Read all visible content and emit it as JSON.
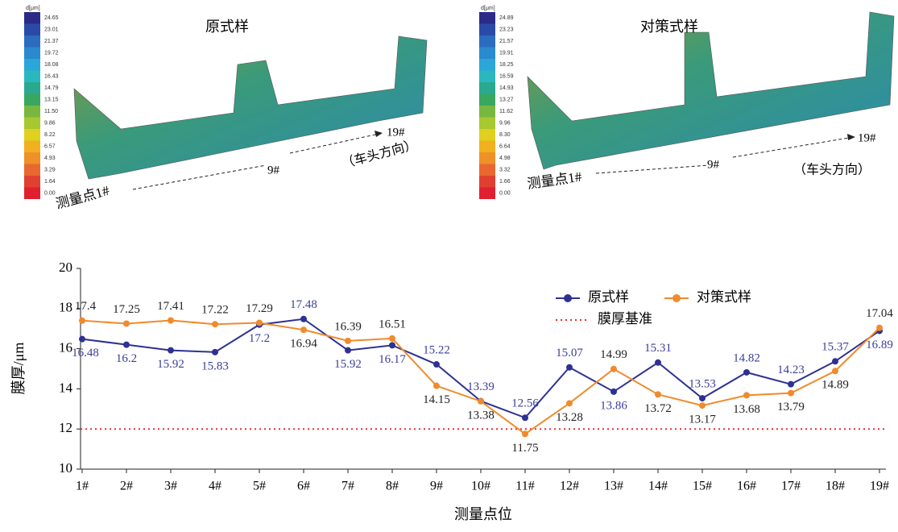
{
  "panels": [
    {
      "title": "原式样",
      "scale_label": "d[μm]",
      "scale": [
        "24.65",
        "23.01",
        "21.37",
        "19.72",
        "18.08",
        "16.43",
        "14.79",
        "13.15",
        "11.50",
        "9.86",
        "8.22",
        "6.57",
        "4.93",
        "3.29",
        "1.64",
        "0.00"
      ],
      "annotations": [
        "测量点1#",
        "9#",
        "19#",
        "（车头方向）"
      ]
    },
    {
      "title": "对策式样",
      "scale_label": "d[μm]",
      "scale": [
        "24.89",
        "23.23",
        "21.57",
        "19.91",
        "18.25",
        "16.59",
        "14.93",
        "13.27",
        "11.62",
        "9.96",
        "8.30",
        "6.64",
        "4.98",
        "3.32",
        "1.66",
        "0.00"
      ],
      "annotations": [
        "测量点1#",
        "9#",
        "19#",
        "（车头方向）"
      ]
    }
  ],
  "chart_data": {
    "type": "line",
    "x_label": "测量点位",
    "y_label": "膜厚/μm",
    "categories": [
      "1#",
      "2#",
      "3#",
      "4#",
      "5#",
      "6#",
      "7#",
      "8#",
      "9#",
      "10#",
      "11#",
      "12#",
      "13#",
      "14#",
      "15#",
      "16#",
      "17#",
      "18#",
      "19#"
    ],
    "series": [
      {
        "name": "原式样",
        "color": "#2e3192",
        "label_color": "#3a3d9a",
        "values": [
          16.48,
          16.2,
          15.92,
          15.83,
          17.2,
          17.48,
          15.92,
          16.17,
          15.22,
          13.39,
          12.56,
          15.07,
          13.86,
          15.31,
          13.53,
          14.82,
          14.23,
          15.37,
          16.89
        ]
      },
      {
        "name": "对策式样",
        "color": "#f08a2c",
        "label_color": "#222222",
        "values": [
          17.4,
          17.25,
          17.41,
          17.22,
          17.29,
          16.94,
          16.39,
          16.51,
          14.15,
          13.38,
          11.75,
          13.28,
          14.99,
          13.72,
          13.17,
          13.68,
          13.79,
          14.89,
          17.04
        ]
      }
    ],
    "reference_lines": [
      {
        "name": "膜厚基准",
        "value": 12,
        "color": "#e53030"
      }
    ],
    "ylim": [
      10,
      20
    ],
    "yticks": [
      10,
      12,
      14,
      16,
      18,
      20
    ]
  }
}
